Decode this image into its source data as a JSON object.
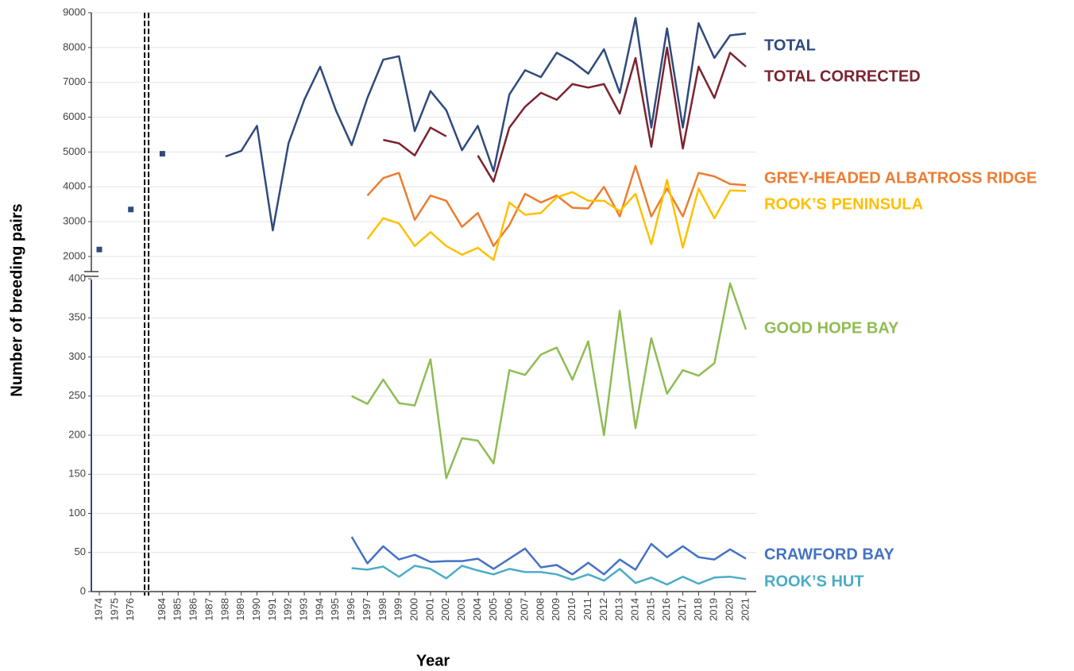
{
  "chart_data": [
    {
      "type": "line",
      "ylabel": "Number of breeding pairs",
      "ylim": [
        2000,
        9000
      ],
      "yticks": [
        2000,
        3000,
        4000,
        5000,
        6000,
        7000,
        8000,
        9000
      ],
      "grid": true,
      "series": [
        {
          "name": "TOTAL",
          "color": "#2f4b7c",
          "values": [
            2200,
            null,
            3350,
            null,
            4950,
            null,
            null,
            null,
            4870,
            5030,
            5750,
            2750,
            5250,
            6500,
            7450,
            6200,
            5200,
            6550,
            7650,
            7750,
            5600,
            6750,
            6200,
            5050,
            5750,
            4450,
            6650,
            7350,
            7150,
            7850,
            7600,
            7250,
            7950,
            6700,
            8850,
            5700,
            8550,
            5700,
            8700,
            7700,
            8350,
            8400
          ]
        },
        {
          "name": "TOTAL CORRECTED",
          "color": "#7b2430",
          "values": [
            null,
            null,
            null,
            null,
            null,
            null,
            null,
            null,
            null,
            null,
            null,
            null,
            null,
            null,
            null,
            null,
            null,
            null,
            5350,
            5250,
            4900,
            5700,
            5450,
            null,
            4900,
            4150,
            5700,
            6300,
            6700,
            6500,
            6950,
            6850,
            6950,
            6100,
            7700,
            5150,
            8000,
            5100,
            7450,
            6550,
            7850,
            7450
          ]
        },
        {
          "name": "GREY-HEADED ALBATROSS RIDGE",
          "color": "#ed7d31",
          "values": [
            null,
            null,
            null,
            null,
            null,
            null,
            null,
            null,
            null,
            null,
            null,
            null,
            null,
            null,
            null,
            null,
            null,
            3750,
            4250,
            4400,
            3050,
            3750,
            3600,
            2850,
            3250,
            2300,
            2900,
            3800,
            3550,
            3750,
            3400,
            3380,
            4000,
            3150,
            4600,
            3150,
            3950,
            3150,
            4400,
            4300,
            4080,
            4050
          ]
        },
        {
          "name": "ROOK’S PENINSULA",
          "color": "#ffc000",
          "values": [
            null,
            null,
            null,
            null,
            null,
            null,
            null,
            null,
            null,
            null,
            null,
            null,
            null,
            null,
            null,
            null,
            null,
            2500,
            3100,
            2950,
            2300,
            2700,
            2300,
            2050,
            2250,
            1900,
            3550,
            3200,
            3250,
            3700,
            3850,
            3600,
            3600,
            3300,
            3800,
            2350,
            4200,
            2250,
            3950,
            3100,
            3900,
            3880
          ]
        }
      ]
    },
    {
      "type": "line",
      "xlabel": "Year",
      "ylim": [
        0,
        400
      ],
      "yticks": [
        0,
        50,
        100,
        150,
        200,
        250,
        300,
        350,
        400
      ],
      "grid": true,
      "categories": [
        "1974",
        "1975",
        "1976",
        null,
        "1984",
        "1985",
        "1986",
        "1987",
        "1988",
        "1989",
        "1990",
        "1991",
        "1992",
        "1993",
        "1994",
        "1995",
        "1996",
        "1997",
        "1998",
        "1999",
        "2000",
        "2001",
        "2002",
        "2003",
        "2004",
        "2005",
        "2006",
        "2007",
        "2008",
        "2009",
        "2010",
        "2011",
        "2012",
        "2013",
        "2014",
        "2015",
        "2016",
        "2017",
        "2018",
        "2019",
        "2020",
        "2021"
      ],
      "series": [
        {
          "name": "GOOD HOPE BAY",
          "color": "#8fbc55",
          "values": [
            null,
            null,
            null,
            null,
            null,
            null,
            null,
            null,
            null,
            null,
            null,
            null,
            null,
            null,
            null,
            null,
            250,
            240,
            271,
            241,
            238,
            297,
            145,
            196,
            193,
            164,
            283,
            277,
            303,
            312,
            271,
            320,
            200,
            359,
            209,
            324,
            253,
            283,
            276,
            292,
            394,
            335
          ]
        },
        {
          "name": "CRAWFORD BAY",
          "color": "#4472c4",
          "values": [
            null,
            null,
            null,
            null,
            null,
            null,
            null,
            null,
            null,
            null,
            null,
            null,
            null,
            null,
            null,
            null,
            70,
            36,
            58,
            41,
            47,
            38,
            39,
            39,
            42,
            29,
            42,
            55,
            31,
            34,
            22,
            37,
            22,
            41,
            28,
            61,
            44,
            58,
            44,
            41,
            54,
            42
          ]
        },
        {
          "name": "ROOK’S HUT",
          "color": "#4bacc6",
          "values": [
            null,
            null,
            null,
            null,
            null,
            null,
            null,
            null,
            null,
            null,
            null,
            null,
            null,
            null,
            null,
            null,
            30,
            28,
            32,
            19,
            33,
            29,
            17,
            33,
            27,
            22,
            29,
            25,
            25,
            22,
            15,
            22,
            14,
            29,
            11,
            18,
            9,
            19,
            10,
            18,
            19,
            16
          ]
        }
      ]
    }
  ]
}
